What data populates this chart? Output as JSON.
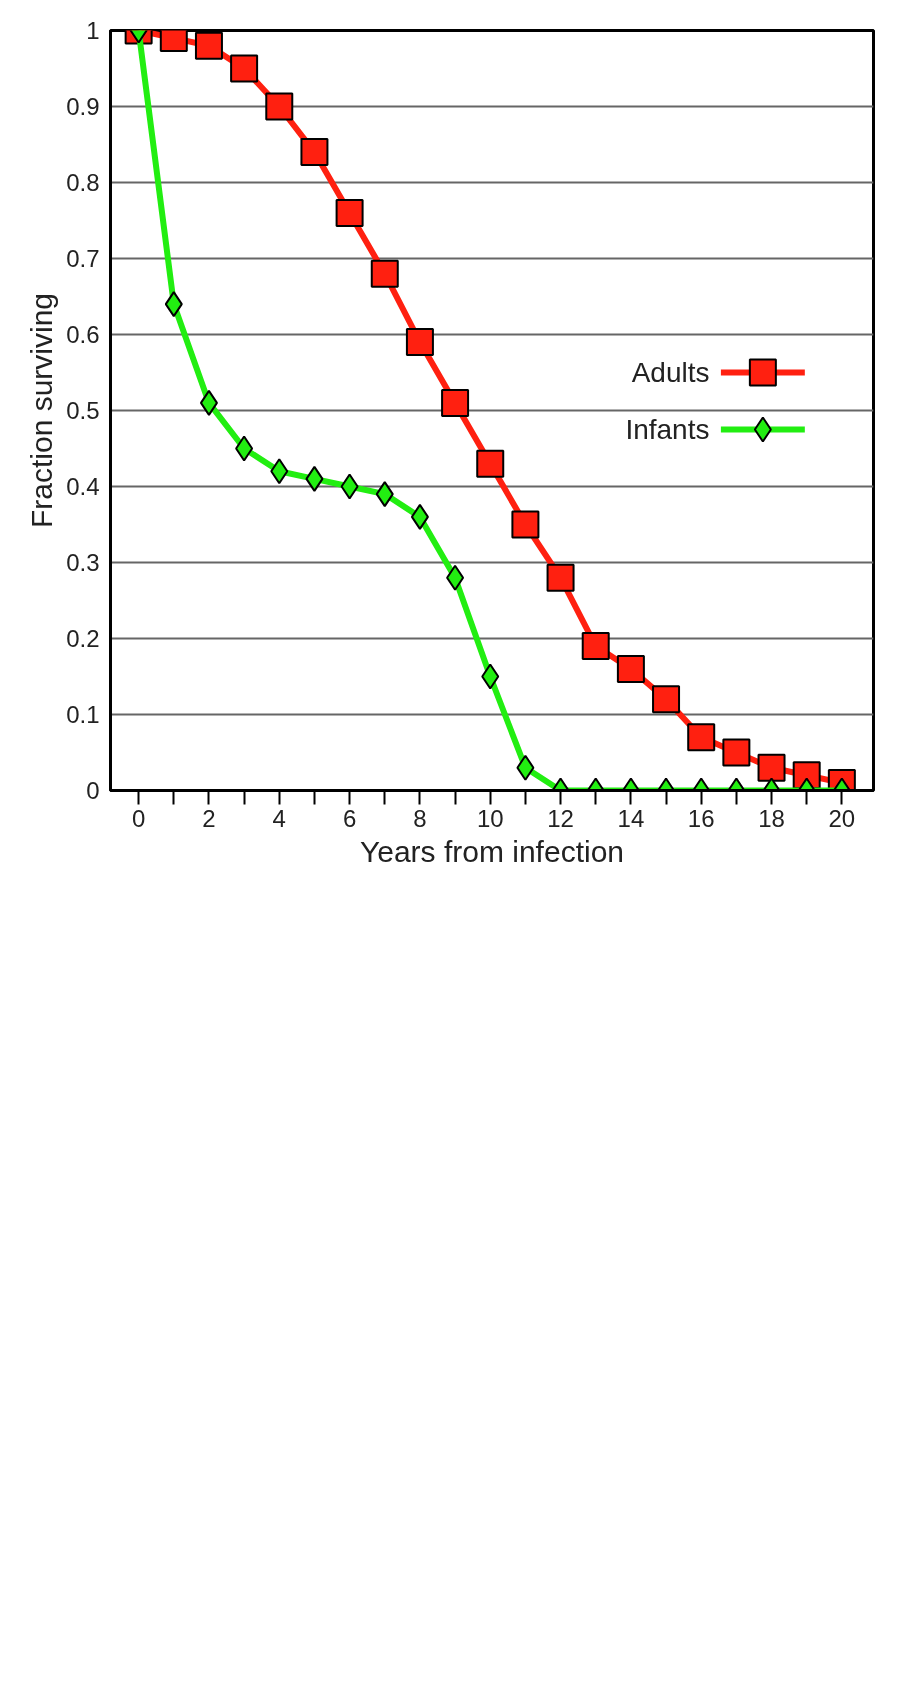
{
  "chart_data": {
    "type": "line",
    "xlabel": "Years from infection",
    "ylabel": "Fraction surviving",
    "x": [
      0,
      1,
      2,
      3,
      4,
      5,
      6,
      7,
      8,
      9,
      10,
      11,
      12,
      13,
      14,
      15,
      16,
      17,
      18,
      19,
      20
    ],
    "series": [
      {
        "name": "Adults",
        "color": "#ff2010",
        "marker": "square",
        "values": [
          1,
          0.99,
          0.98,
          0.95,
          0.9,
          0.84,
          0.76,
          0.68,
          0.59,
          0.51,
          0.43,
          0.35,
          0.28,
          0.19,
          0.16,
          0.12,
          0.07,
          0.05,
          0.03,
          0.02,
          0.01
        ]
      },
      {
        "name": "Infants",
        "color": "#22ee11",
        "marker": "diamond",
        "values": [
          1,
          0.64,
          0.51,
          0.45,
          0.42,
          0.41,
          0.4,
          0.39,
          0.36,
          0.28,
          0.15,
          0.03,
          0,
          0,
          0,
          0,
          0,
          0,
          0,
          0,
          0
        ]
      }
    ],
    "xlim": [
      -0.8,
      20.9
    ],
    "xticks": [
      {
        "value": 0,
        "label": "0"
      },
      {
        "value": 1,
        "label": null
      },
      {
        "value": 2,
        "label": "2"
      },
      {
        "value": 3,
        "label": null
      },
      {
        "value": 4,
        "label": "4"
      },
      {
        "value": 5,
        "label": null
      },
      {
        "value": 6,
        "label": "6"
      },
      {
        "value": 7,
        "label": null
      },
      {
        "value": 8,
        "label": "8"
      },
      {
        "value": 9,
        "label": null
      },
      {
        "value": 10,
        "label": "10"
      },
      {
        "value": 11,
        "label": null
      },
      {
        "value": 12,
        "label": "12"
      },
      {
        "value": 13,
        "label": null
      },
      {
        "value": 14,
        "label": "14"
      },
      {
        "value": 15,
        "label": null
      },
      {
        "value": 16,
        "label": "16"
      },
      {
        "value": 17,
        "label": null
      },
      {
        "value": 18,
        "label": "18"
      },
      {
        "value": 19,
        "label": null
      },
      {
        "value": 20,
        "label": "20"
      }
    ],
    "ylim": [
      0,
      1
    ],
    "yticks": [
      0,
      0.1,
      0.2,
      0.3,
      0.4,
      0.5,
      0.6,
      0.7,
      0.8,
      0.9,
      1
    ],
    "grid": "y",
    "legend": "right"
  }
}
